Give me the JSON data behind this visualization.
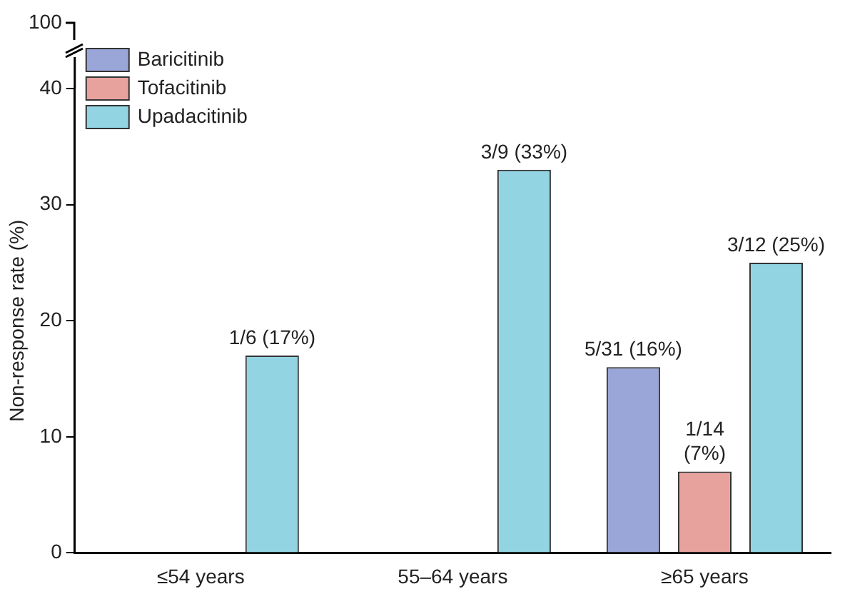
{
  "chart_data": {
    "type": "bar",
    "ylabel": "Non-response rate (%)",
    "categories": [
      "≤54 years",
      "55–64 years",
      "≥65 years"
    ],
    "series": [
      {
        "name": "Baricitinib",
        "color": "#9ba6d8",
        "values": [
          null,
          null,
          16
        ],
        "value_labels": [
          null,
          null,
          "5/31 (16%)"
        ]
      },
      {
        "name": "Tofacitinib",
        "color": "#e8a29e",
        "values": [
          null,
          null,
          7
        ],
        "value_labels": [
          null,
          null,
          "1/14\n(7%)"
        ]
      },
      {
        "name": "Upadacitinib",
        "color": "#93d4e2",
        "values": [
          17,
          33,
          25
        ],
        "value_labels": [
          "1/6 (17%)",
          "3/9 (33%)",
          "3/12 (25%)"
        ]
      }
    ],
    "ylim": [
      0,
      40
    ],
    "yticks": [
      0,
      10,
      20,
      30,
      40
    ],
    "annotations": [
      "100"
    ],
    "grid": false,
    "legend": "top left"
  }
}
